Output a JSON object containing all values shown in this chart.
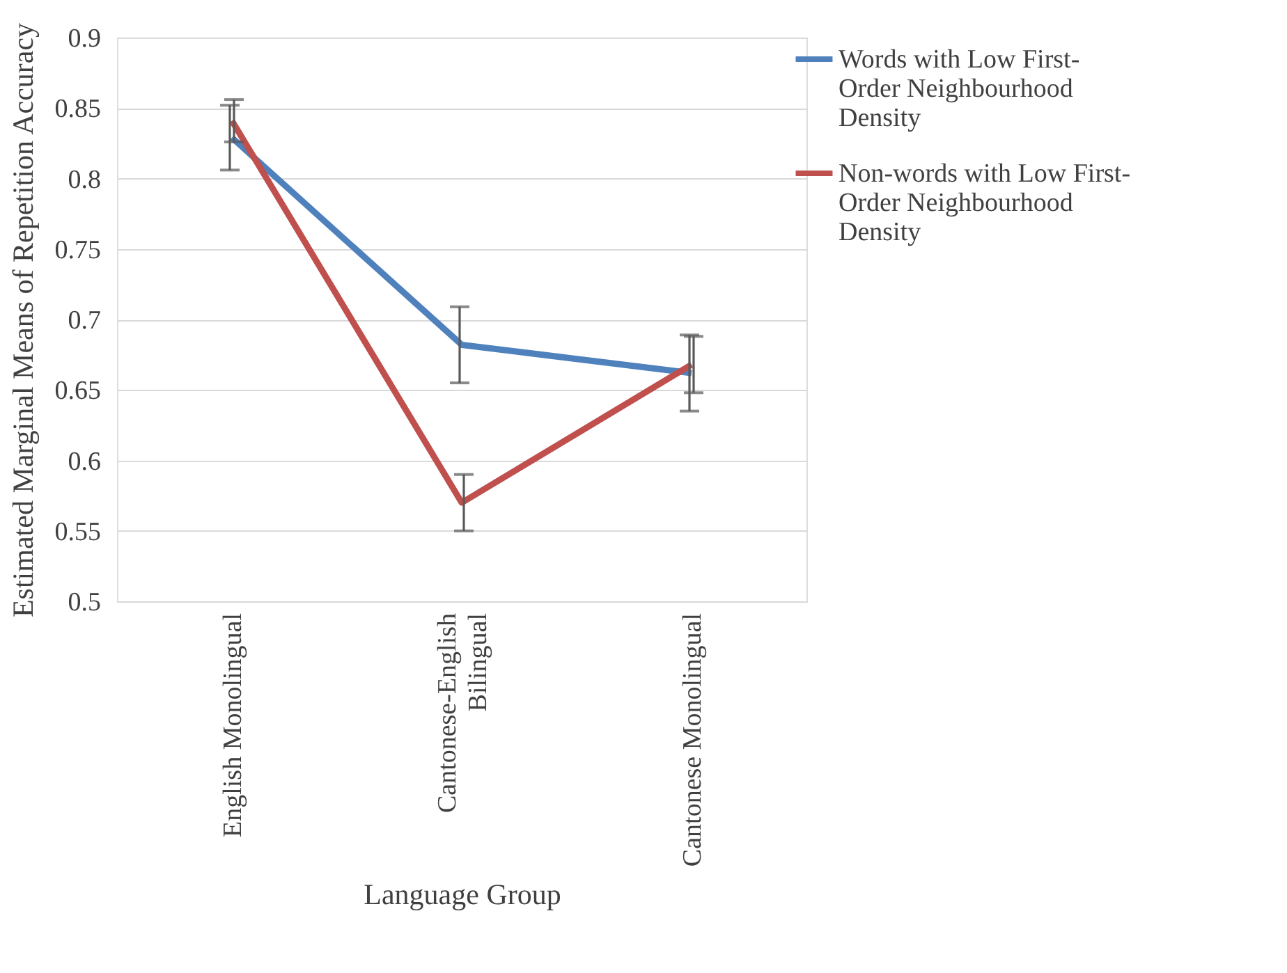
{
  "chart_data": {
    "type": "line",
    "xlabel": "Language Group",
    "ylabel": "Estimated Marginal Means of Repetition Accuracy",
    "categories": [
      "English Monolingual",
      "Cantonese-English Bilingual",
      "Cantonese Monolingual"
    ],
    "series": [
      {
        "name": "Words with Low First-Order Neighbourhood Density",
        "color": "#4f81bd",
        "values": [
          0.829,
          0.682,
          0.662
        ],
        "errors": [
          0.023,
          0.027,
          0.027
        ]
      },
      {
        "name": "Non-words with Low First-Order Neighbourhood Density",
        "color": "#c0504d",
        "values": [
          0.841,
          0.57,
          0.668
        ],
        "errors": [
          0.015,
          0.02,
          0.02
        ]
      }
    ],
    "ylim": [
      0.5,
      0.9
    ],
    "yticks": [
      0.5,
      0.55,
      0.6,
      0.65,
      0.7,
      0.75,
      0.8,
      0.85,
      0.9
    ],
    "grid": "y",
    "legend": "right",
    "marker": "none",
    "line_style": "solid"
  }
}
